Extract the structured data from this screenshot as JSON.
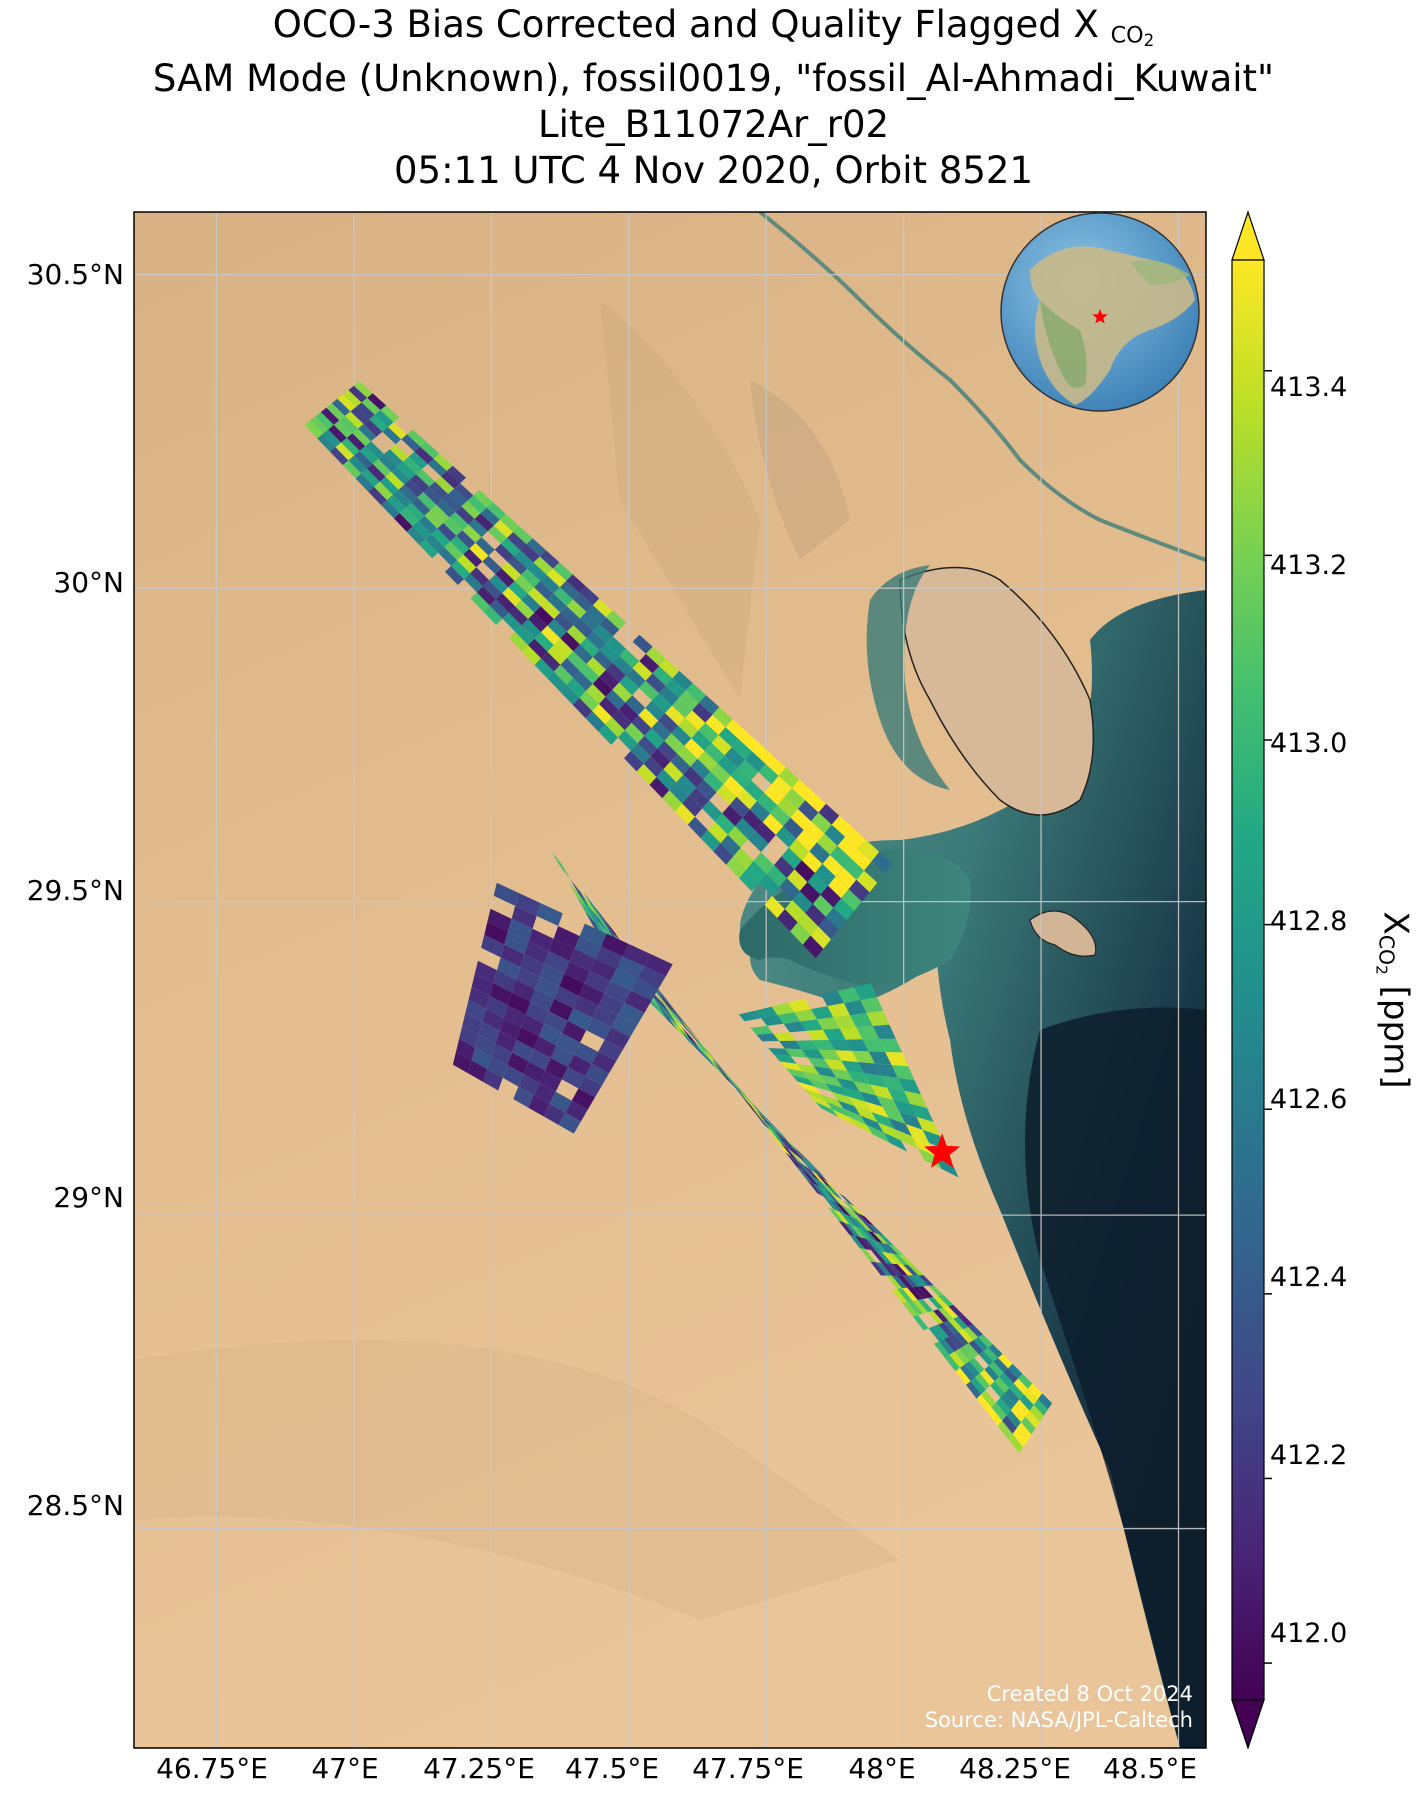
{
  "title": {
    "line1_main": "OCO-3 Bias Corrected and Quality Flagged X",
    "line1_sub": "CO",
    "line1_subsub": "2",
    "line2": "SAM Mode (Unknown), fossil0019, \"fossil_Al-Ahmadi_Kuwait\"",
    "line3": "Lite_B11072Ar_r02",
    "line4": "05:11 UTC 4 Nov 2020, Orbit 8521"
  },
  "axes": {
    "lat_ticks": [
      "30.5°N",
      "30°N",
      "29.5°N",
      "29°N",
      "28.5°N"
    ],
    "lon_ticks": [
      "46.75°E",
      "47°E",
      "47.25°E",
      "47.5°E",
      "47.75°E",
      "48°E",
      "48.25°E",
      "48.5°E"
    ],
    "lat_values": [
      30.5,
      30.0,
      29.5,
      29.0,
      28.5
    ],
    "lon_values": [
      46.75,
      47.0,
      47.25,
      47.5,
      47.75,
      48.0,
      48.25,
      48.5
    ],
    "lat_range": [
      28.15,
      30.6
    ],
    "lon_range": [
      46.6,
      48.55
    ],
    "grid": true
  },
  "colorbar": {
    "label_main": "X",
    "label_sub": "CO",
    "label_subsub": "2",
    "label_units": " [ppm]",
    "ticks": [
      "413.4",
      "413.2",
      "413.0",
      "412.8",
      "412.6",
      "412.4",
      "412.2",
      "412.0"
    ],
    "tick_values": [
      413.4,
      413.2,
      413.0,
      412.8,
      412.6,
      412.4,
      412.2,
      412.0
    ],
    "range": [
      411.96,
      413.52
    ],
    "extend": "both",
    "colormap": "viridis"
  },
  "credits": {
    "line1": "Created 8 Oct 2024",
    "line2": "Source: NASA/JPL-Caltech"
  },
  "target_site": {
    "name": "fossil_Al-Ahmadi_Kuwait",
    "lon": 48.07,
    "lat": 29.1,
    "marker": "red-star"
  },
  "colors": {
    "desert": "#e0b889",
    "sea_shallow": "#4a8c84",
    "sea_deep": "#0f2232",
    "marker": "#ff0000"
  },
  "chart_data": {
    "type": "heatmap",
    "variable": "XCO2",
    "units": "ppm",
    "swaths": [
      {
        "name": "northern",
        "corners": [
          [
            46.91,
            30.26
          ],
          [
            47.01,
            30.33
          ],
          [
            47.98,
            29.56
          ],
          [
            47.84,
            29.41
          ]
        ],
        "range": [
          412.0,
          413.5
        ]
      },
      {
        "name": "central",
        "corners": [
          [
            47.36,
            29.58
          ],
          [
            47.48,
            29.39
          ],
          [
            48.27,
            28.7
          ],
          [
            48.21,
            28.62
          ]
        ],
        "range": [
          412.0,
          413.5
        ]
      },
      {
        "name": "western",
        "corners": [
          [
            47.26,
            29.53
          ],
          [
            47.58,
            29.4
          ],
          [
            47.4,
            29.13
          ],
          [
            47.18,
            29.24
          ]
        ],
        "range": [
          412.0,
          412.4
        ]
      },
      {
        "name": "bay-coast",
        "corners": [
          [
            47.7,
            29.32
          ],
          [
            47.94,
            29.37
          ],
          [
            48.1,
            29.06
          ],
          [
            47.85,
            29.17
          ]
        ],
        "range": [
          412.6,
          413.5
        ]
      }
    ]
  },
  "inset": {
    "type": "globe",
    "marker": "red-star"
  }
}
